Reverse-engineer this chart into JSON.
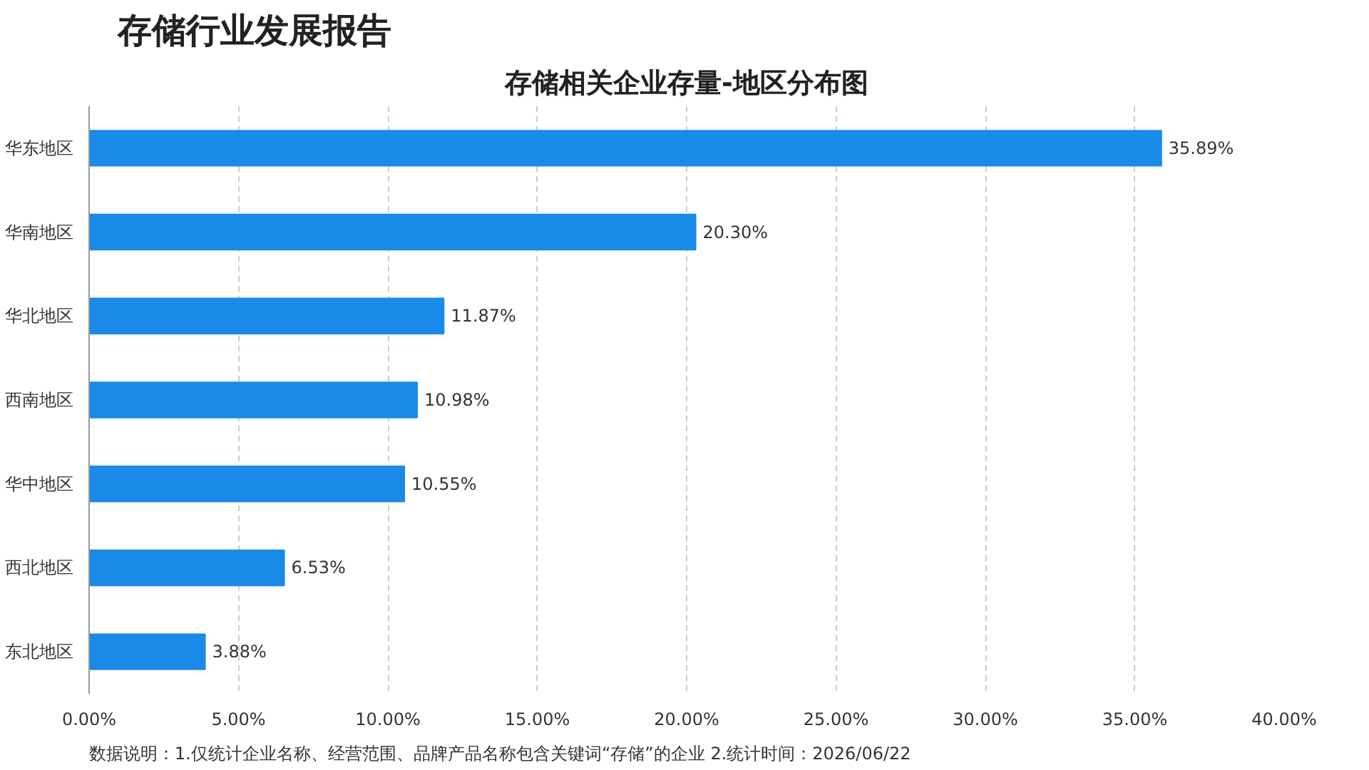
{
  "chart_data": {
    "type": "bar",
    "orientation": "horizontal",
    "title": "存储行业发展报告",
    "subtitle": "存储相关企业存量-地区分布图",
    "categories": [
      "华东地区",
      "华南地区",
      "华北地区",
      "西南地区",
      "华中地区",
      "西北地区",
      "东北地区"
    ],
    "values": [
      35.89,
      20.3,
      11.87,
      10.98,
      10.55,
      6.53,
      3.88
    ],
    "value_labels": [
      "35.89%",
      "20.30%",
      "11.87%",
      "10.98%",
      "10.55%",
      "6.53%",
      "3.88%"
    ],
    "color": "#1a8ae8",
    "xlim": [
      0,
      40
    ],
    "xticks": [
      {
        "value": 0,
        "label": "0.00%"
      },
      {
        "value": 5,
        "label": "5.00%"
      },
      {
        "value": 10,
        "label": "10.00%"
      },
      {
        "value": 15,
        "label": "15.00%"
      },
      {
        "value": 20,
        "label": "20.00%"
      },
      {
        "value": 25,
        "label": "25.00%"
      },
      {
        "value": 30,
        "label": "30.00%"
      },
      {
        "value": 35,
        "label": "35.00%"
      },
      {
        "value": 40,
        "label": "40.00%"
      }
    ],
    "grid": "x",
    "annotations": [
      "数据说明：1.仅统计企业名称、经营范围、品牌产品名称包含关键词“存储”的企业  2.统计时间：2026/06/22"
    ]
  }
}
